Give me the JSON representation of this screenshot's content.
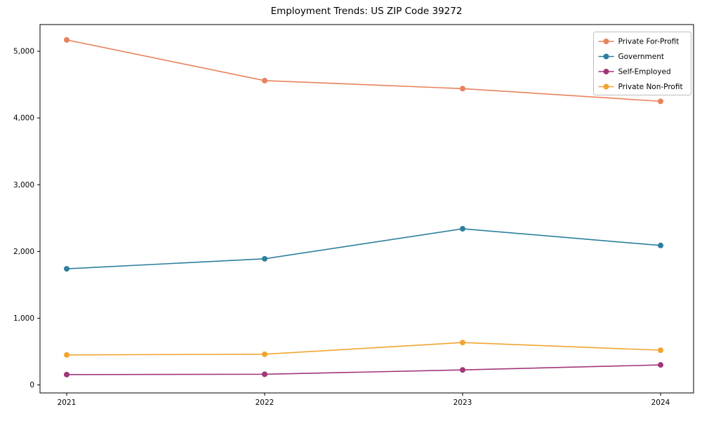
{
  "chart_data": {
    "type": "line",
    "title": "Employment Trends: US ZIP Code 39272",
    "x": [
      "2021",
      "2022",
      "2023",
      "2024"
    ],
    "series": [
      {
        "name": "Private For-Profit",
        "color": "#e8825c",
        "values": [
          5170,
          4560,
          4440,
          4250
        ]
      },
      {
        "name": "Government",
        "color": "#2d7f9d",
        "values": [
          1740,
          1890,
          2340,
          2090
        ]
      },
      {
        "name": "Self-Employed",
        "color": "#a23679",
        "values": [
          155,
          160,
          225,
          300
        ]
      },
      {
        "name": "Private Non-Profit",
        "color": "#f2a431",
        "values": [
          450,
          460,
          635,
          520
        ]
      }
    ],
    "yticks": [
      {
        "value": 0,
        "label": "0"
      },
      {
        "value": 1000,
        "label": "1,000"
      },
      {
        "value": 2000,
        "label": "2,000"
      },
      {
        "value": 3000,
        "label": "3,000"
      },
      {
        "value": 4000,
        "label": "4,000"
      },
      {
        "value": 5000,
        "label": "5,000"
      }
    ],
    "ylim": [
      -120,
      5400
    ],
    "xlabel": "",
    "ylabel": "",
    "grid": false,
    "legend_position": "upper right",
    "marker": "circle",
    "axis_color": "#000000",
    "legend_border_color": "#bfbfbf",
    "background_color": "#ffffff"
  }
}
